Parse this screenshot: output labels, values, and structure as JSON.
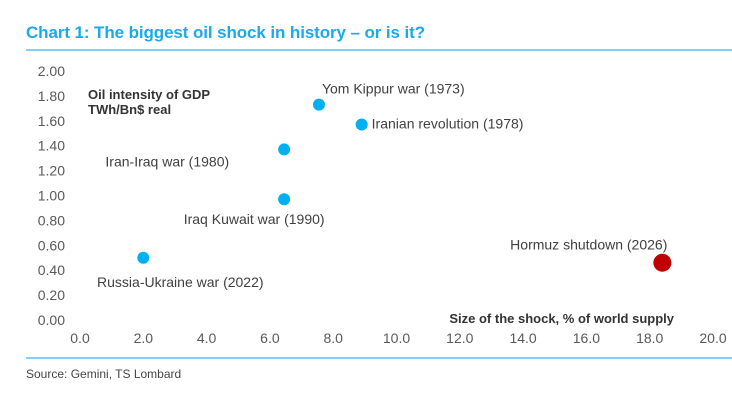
{
  "header": {
    "title": "Chart 1: The biggest oil shock in history – or is it?"
  },
  "footer": {
    "source": "Source: Gemini, TS Lombard"
  },
  "colors": {
    "accent": "#1aaae8",
    "rule": "#7fd3f2",
    "historic_point": "#00b0f0",
    "highlight_point": "#c00000",
    "tick_text": "#595959",
    "label_text": "#404040"
  },
  "chart_data": {
    "type": "scatter",
    "title": "Chart 1: The biggest oil shock in history – or is it?",
    "xlabel": "Size of the shock, % of world supply",
    "ylabel": "Oil intensity of GDP\nTWh/Bn$ real",
    "ylabel_lines": [
      "Oil intensity of GDP",
      "TWh/Bn$ real"
    ],
    "xlim": [
      0,
      20
    ],
    "ylim": [
      0,
      2
    ],
    "xticks": [
      "0.0",
      "2.0",
      "4.0",
      "6.0",
      "8.0",
      "10.0",
      "12.0",
      "14.0",
      "16.0",
      "18.0",
      "20.0"
    ],
    "yticks": [
      "0.00",
      "0.20",
      "0.40",
      "0.60",
      "0.80",
      "1.00",
      "1.20",
      "1.40",
      "1.60",
      "1.80",
      "2.00"
    ],
    "grid": false,
    "legend": "none",
    "points": [
      {
        "label": "Yom Kippur war (1973)",
        "x": 7.55,
        "y": 1.73,
        "highlight": false,
        "label_pos": "above-right"
      },
      {
        "label": "Iranian revolution (1978)",
        "x": 8.9,
        "y": 1.57,
        "highlight": false,
        "label_pos": "right"
      },
      {
        "label": "Iran-Iraq war (1980)",
        "x": 6.45,
        "y": 1.37,
        "highlight": false,
        "label_pos": "below-left"
      },
      {
        "label": "Iraq Kuwait war (1990)",
        "x": 6.45,
        "y": 0.97,
        "highlight": false,
        "label_pos": "below"
      },
      {
        "label": "Russia-Ukraine war (2022)",
        "x": 2.0,
        "y": 0.5,
        "highlight": false,
        "label_pos": "below"
      },
      {
        "label": "Hormuz shutdown (2026)",
        "x": 18.4,
        "y": 0.46,
        "highlight": true,
        "label_pos": "above-left"
      }
    ],
    "source": "Source: Gemini, TS Lombard"
  }
}
